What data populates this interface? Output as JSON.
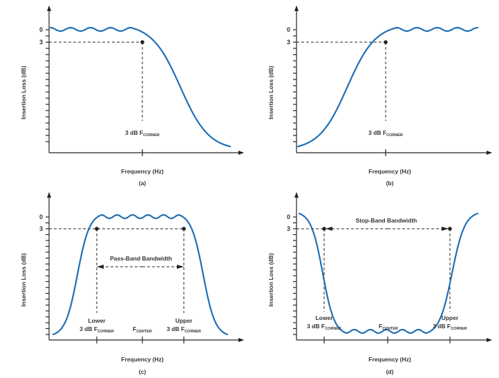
{
  "colors": {
    "curve": "#1f6fb5",
    "axis": "#222222",
    "text": "#333333",
    "marker": "#222222"
  },
  "chart_data": [
    {
      "id": "a",
      "type": "line",
      "title": "",
      "caption": "(a)",
      "filter": "low-pass",
      "xlabel": "Frequency (Hz)",
      "ylabel": "Insertion Loss (dB)",
      "yticks": [
        "0",
        "3"
      ],
      "ylim_description": "0 dB at top, increasing loss downward",
      "series": [
        {
          "name": "response",
          "shape": "low-pass with passband ripple",
          "ripples": 4
        }
      ],
      "markers": [
        {
          "label": "3 dB F",
          "subscript": "CORNER",
          "y_db": 3
        }
      ],
      "annotations": []
    },
    {
      "id": "b",
      "type": "line",
      "caption": "(b)",
      "filter": "high-pass",
      "xlabel": "Frequency (Hz)",
      "ylabel": "Insertion Loss (dB)",
      "yticks": [
        "0",
        "3"
      ],
      "series": [
        {
          "name": "response",
          "shape": "high-pass with passband ripple",
          "ripples": 4
        }
      ],
      "markers": [
        {
          "label": "3 dB F",
          "subscript": "CORNER",
          "y_db": 3
        }
      ],
      "annotations": []
    },
    {
      "id": "c",
      "type": "line",
      "caption": "(c)",
      "filter": "band-pass",
      "xlabel": "Frequency (Hz)",
      "ylabel": "Insertion Loss (dB)",
      "yticks": [
        "0",
        "3"
      ],
      "series": [
        {
          "name": "response",
          "shape": "band-pass with passband ripple",
          "ripples": 5
        }
      ],
      "markers": [
        {
          "line1": "Lower",
          "label": "3 dB F",
          "subscript": "CORNER",
          "y_db": 3
        },
        {
          "line1": "Upper",
          "label": "3 dB F",
          "subscript": "CORNER",
          "y_db": 3
        }
      ],
      "center_label": {
        "label": "F",
        "subscript": "CENTER"
      },
      "annotations": [
        "Pass-Band Bandwidth"
      ]
    },
    {
      "id": "d",
      "type": "line",
      "caption": "(d)",
      "filter": "band-stop",
      "xlabel": "Frequency (Hz)",
      "ylabel": "Insertion Loss (dB)",
      "yticks": [
        "0",
        "3"
      ],
      "series": [
        {
          "name": "response",
          "shape": "band-stop with stopband ripple",
          "ripples": 5
        }
      ],
      "markers": [
        {
          "line1": "Lower",
          "label": "3 dB F",
          "subscript": "CORNER",
          "y_db": 3
        },
        {
          "line1": "Upper",
          "label": "3 dB F",
          "subscript": "CORNER",
          "y_db": 3
        }
      ],
      "center_label": {
        "label": "F",
        "subscript": "CENTER"
      },
      "annotations": [
        "Stop-Band Bandwidth"
      ]
    }
  ]
}
